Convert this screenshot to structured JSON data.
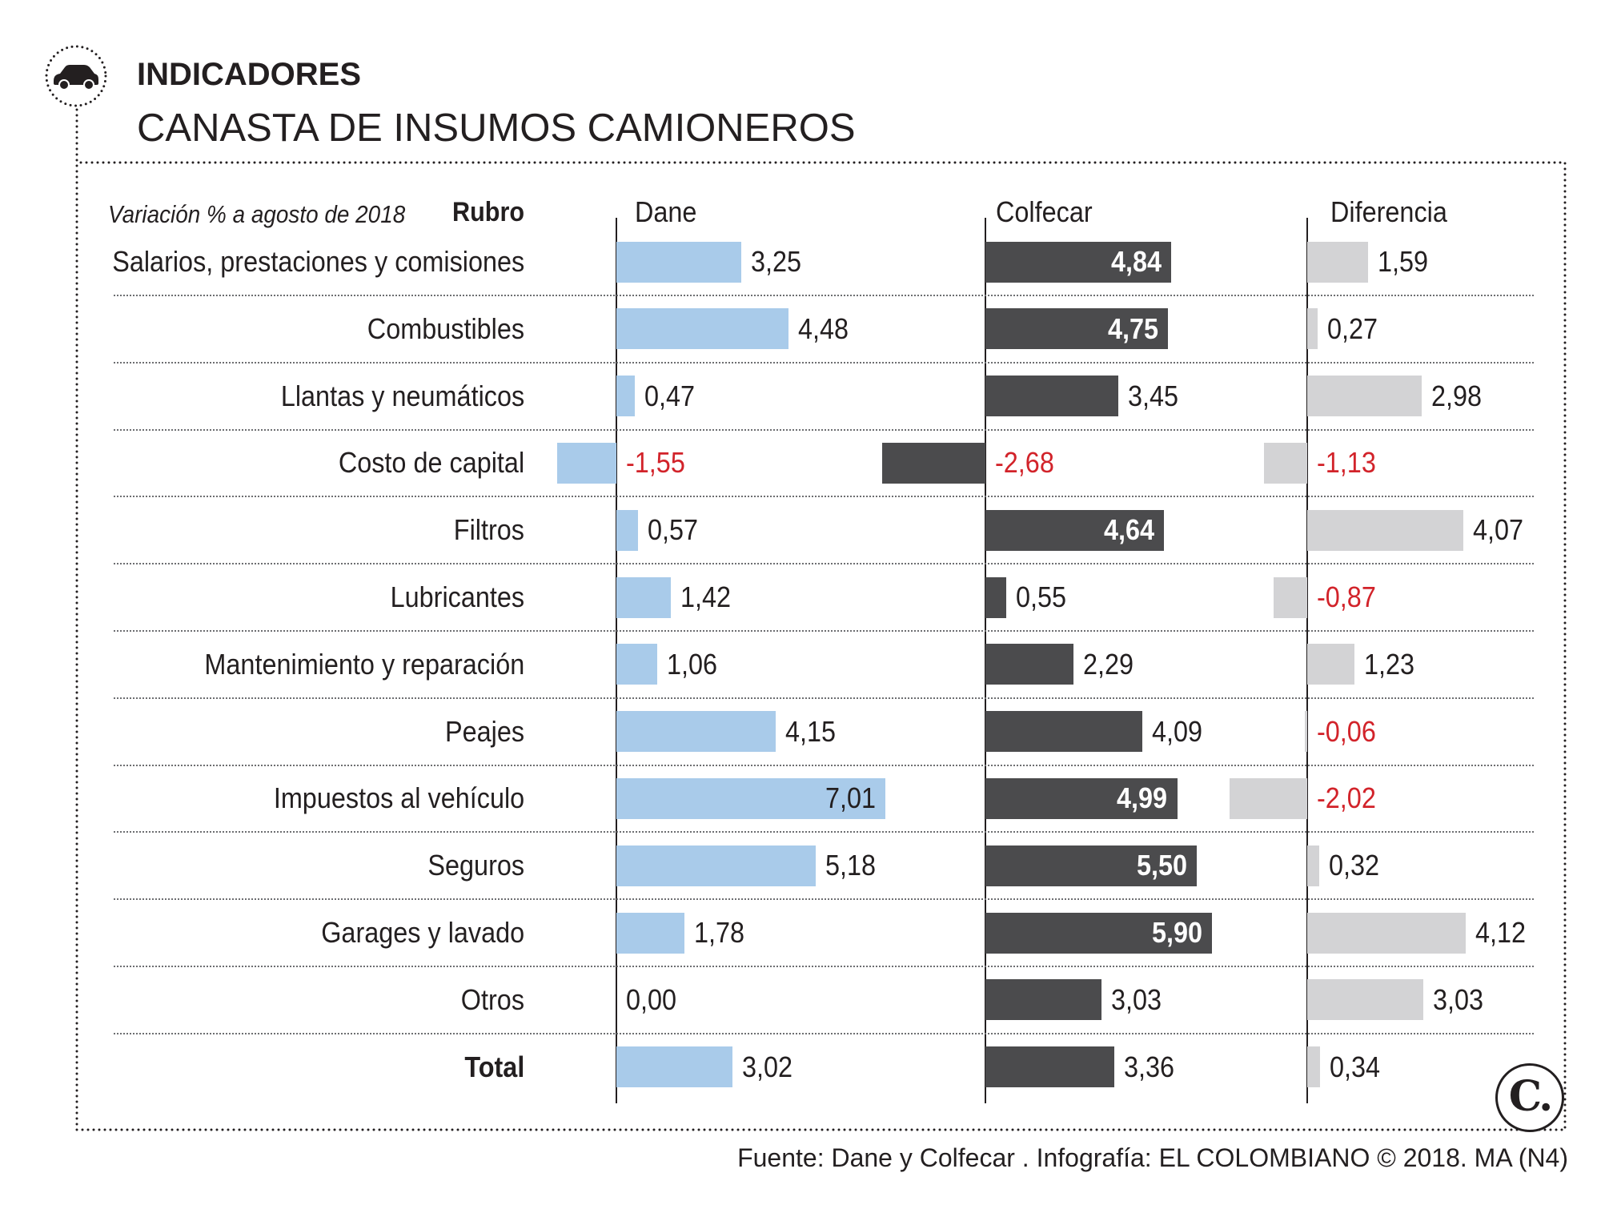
{
  "header": {
    "icon": "car-icon",
    "kicker": "INDICADORES",
    "title": "CANASTA DE INSUMOS CAMIONEROS"
  },
  "chart_data": {
    "type": "bar",
    "note": "Variación % a agosto de 2018",
    "category_header": "Rubro",
    "categories": [
      "Salarios, prestaciones y comisiones",
      "Combustibles",
      "Llantas y neumáticos",
      "Costo de capital",
      "Filtros",
      "Lubricantes",
      "Mantenimiento y reparación",
      "Peajes",
      "Impuestos al vehículo",
      "Seguros",
      "Garages y lavado",
      "Otros",
      "Total"
    ],
    "series": [
      {
        "name": "Dane",
        "color": "#a9cbea",
        "values": [
          3.25,
          4.48,
          0.47,
          -1.55,
          0.57,
          1.42,
          1.06,
          4.15,
          7.01,
          5.18,
          1.78,
          0.0,
          3.02
        ]
      },
      {
        "name": "Colfecar",
        "color": "#4b4b4d",
        "values": [
          4.84,
          4.75,
          3.45,
          -2.68,
          4.64,
          0.55,
          2.29,
          4.09,
          4.99,
          5.5,
          5.9,
          3.03,
          3.36
        ]
      },
      {
        "name": "Diferencia",
        "color": "#d3d3d5",
        "values": [
          1.59,
          0.27,
          2.98,
          -1.13,
          4.07,
          -0.87,
          1.23,
          -0.06,
          -2.02,
          0.32,
          4.12,
          3.03,
          0.34
        ]
      }
    ],
    "negative_color": "#d2232a",
    "grid": false
  },
  "footer": {
    "source": "Fuente: Dane y Colfecar . Infografía: EL COLOMBIANO © 2018. MA (N4)"
  },
  "logo": {
    "text": "C."
  }
}
